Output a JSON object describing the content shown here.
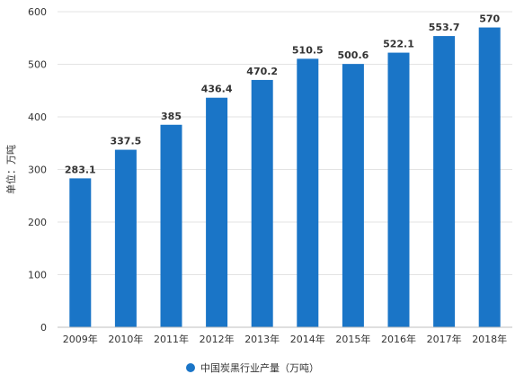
{
  "chart_data": {
    "type": "bar",
    "title": "",
    "xlabel": "",
    "ylabel": "单位：万吨",
    "ylim": [
      0,
      600
    ],
    "yticks": [
      0,
      100,
      200,
      300,
      400,
      500,
      600
    ],
    "grid": true,
    "legend_position": "bottom",
    "categories": [
      "2009年",
      "2010年",
      "2011年",
      "2012年",
      "2013年",
      "2014年",
      "2015年",
      "2016年",
      "2017年",
      "2018年"
    ],
    "series": [
      {
        "name": "中国炭黑行业产量（万吨）",
        "color": "#1a75c7",
        "values": [
          283.1,
          337.5,
          385,
          436.4,
          470.2,
          510.5,
          500.6,
          522.1,
          553.7,
          570
        ],
        "labels": [
          "283.1",
          "337.5",
          "385",
          "436.4",
          "470.2",
          "510.5",
          "500.6",
          "522.1",
          "553.7",
          "570"
        ]
      }
    ]
  }
}
